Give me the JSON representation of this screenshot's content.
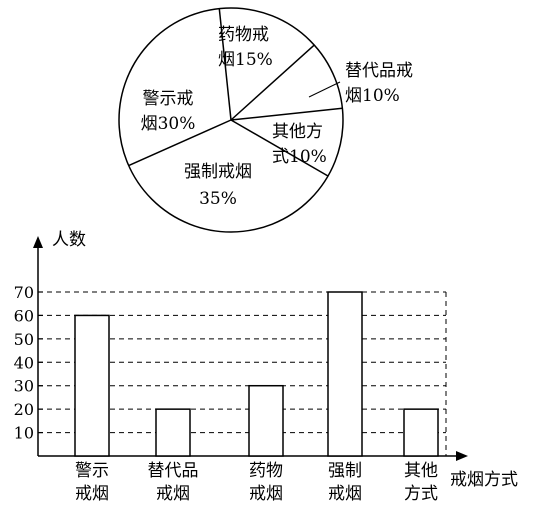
{
  "chart_data": [
    {
      "type": "pie",
      "slices": [
        {
          "label_line1": "药物戒",
          "label_line2": "烟15%",
          "value": 15
        },
        {
          "label_line1": "替代品戒",
          "label_line2": "烟10%",
          "value": 10
        },
        {
          "label_line1": "其他方",
          "label_line2": "式10%",
          "value": 10
        },
        {
          "label_line1": "强制戒烟",
          "label_line2": "35%",
          "value": 35
        },
        {
          "label_line1": "警示戒",
          "label_line2": "烟30%",
          "value": 30
        }
      ]
    },
    {
      "type": "bar",
      "ylabel": "人数",
      "xlabel": "戒烟方式",
      "yticks": [
        10,
        20,
        30,
        40,
        50,
        60,
        70
      ],
      "ylim": [
        0,
        70
      ],
      "grid": "dashed",
      "categories": [
        {
          "line1": "警示",
          "line2": "戒烟"
        },
        {
          "line1": "替代品",
          "line2": "戒烟"
        },
        {
          "line1": "药物",
          "line2": "戒烟"
        },
        {
          "line1": "强制",
          "line2": "戒烟"
        },
        {
          "line1": "其他",
          "line2": "方式"
        }
      ],
      "values": [
        60,
        20,
        30,
        70,
        20
      ]
    }
  ]
}
